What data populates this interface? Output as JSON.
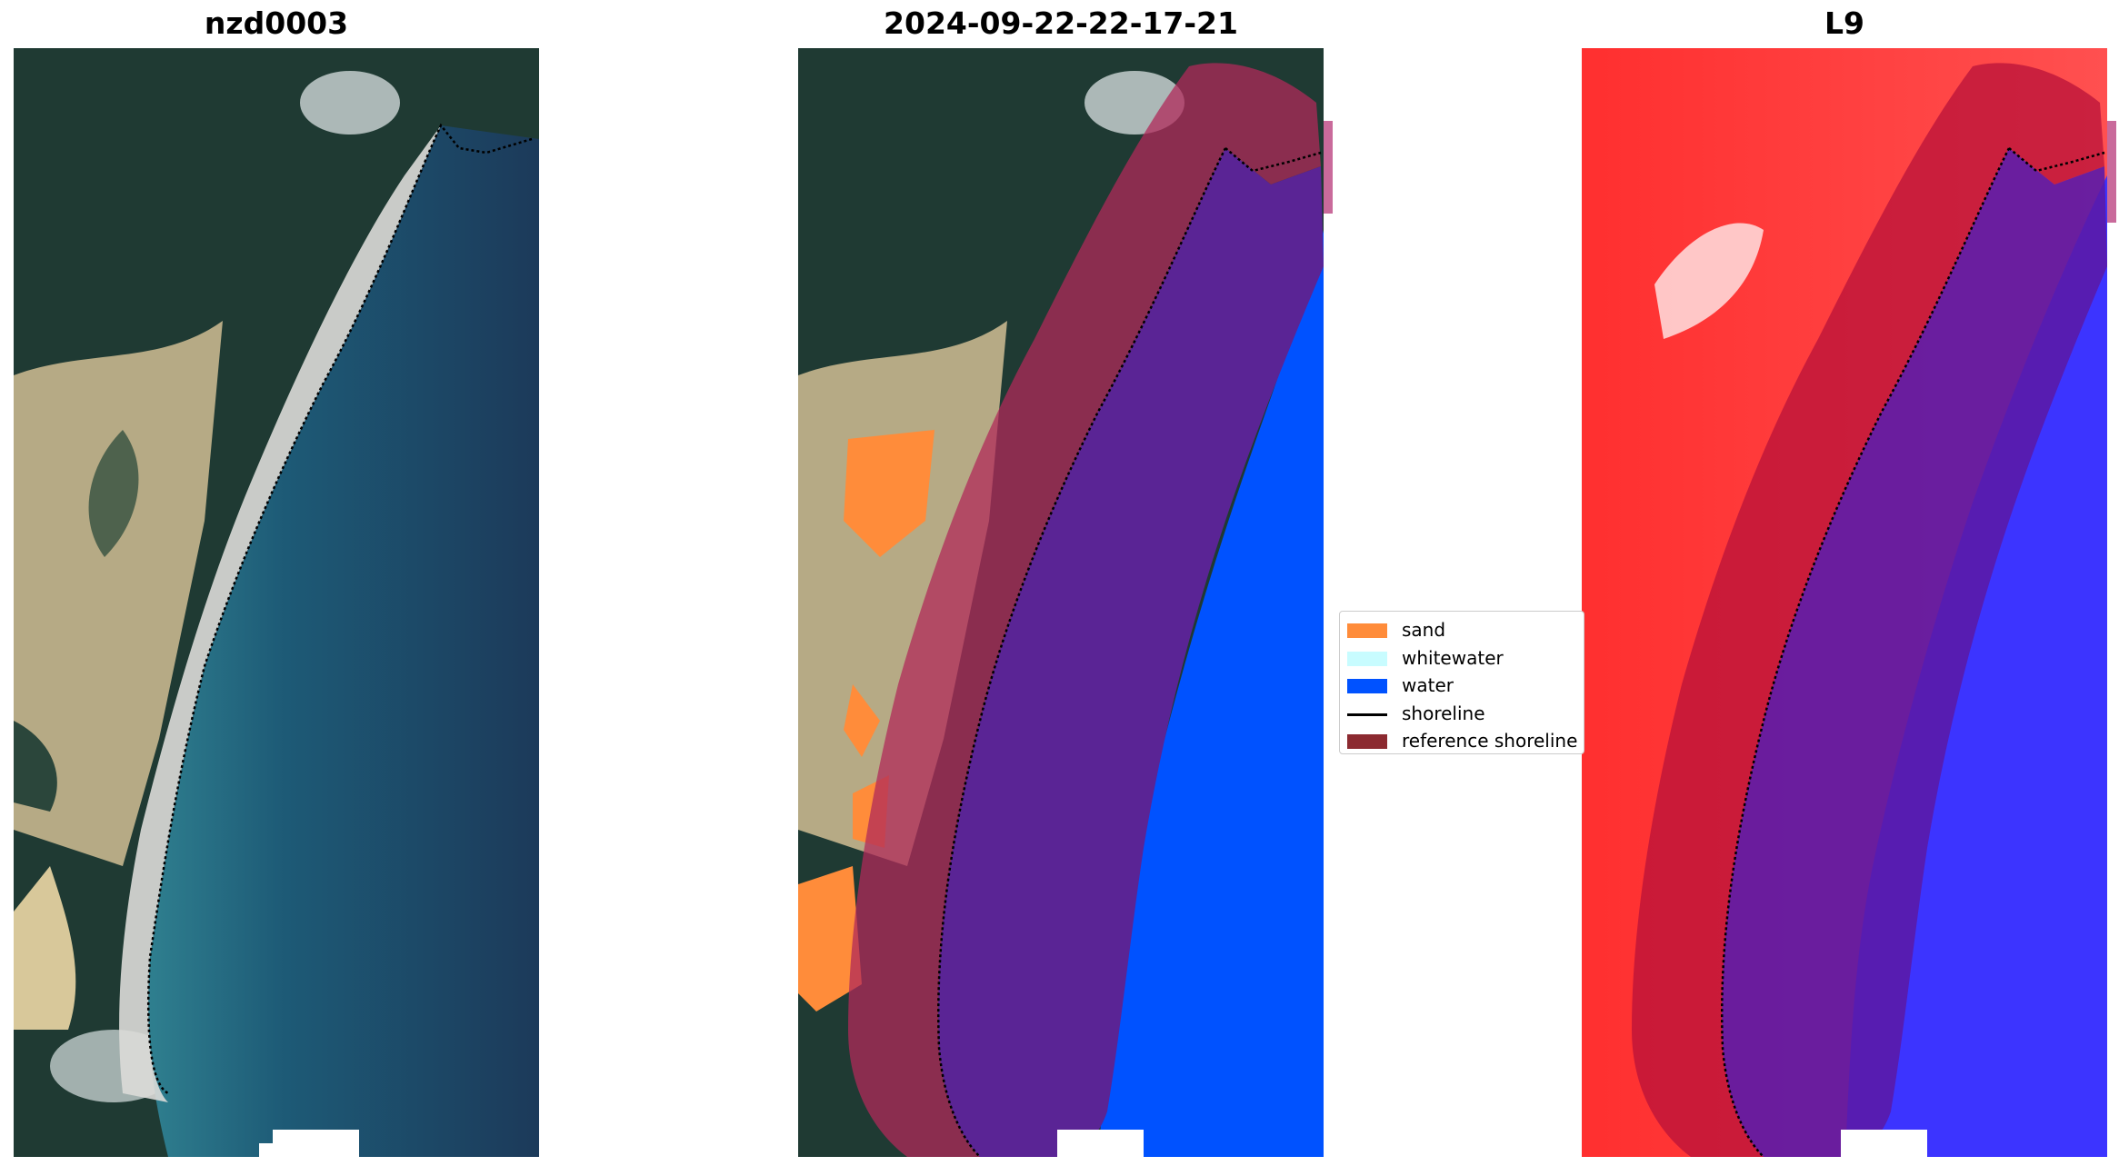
{
  "panels": [
    {
      "title": "nzd0003",
      "style": "rgb"
    },
    {
      "title": "2024-09-22-22-17-21",
      "style": "classified"
    },
    {
      "title": "L9",
      "style": "index"
    }
  ],
  "legend": {
    "items": [
      {
        "label": "sand",
        "kind": "patch",
        "color": "#ff8c3a"
      },
      {
        "label": "whitewater",
        "kind": "patch",
        "color": "#c8fcff"
      },
      {
        "label": "water",
        "kind": "patch",
        "color": "#0052ff"
      },
      {
        "label": "shoreline",
        "kind": "line",
        "color": "#000000"
      },
      {
        "label": "reference shoreline",
        "kind": "patch",
        "color": "#8c2a30"
      }
    ]
  },
  "colors": {
    "forest": "#1f3a33",
    "sand": "#bfb08a",
    "beach": "#dcdcd8",
    "sea": "#1c4568",
    "class_water": "#0052ff",
    "class_sand": "#ff8c3a",
    "buffer_land": "#b02a5a",
    "buffer_sea": "#5a2495",
    "index_land": "#ff3a3a",
    "index_sea": "#3c34ff"
  }
}
